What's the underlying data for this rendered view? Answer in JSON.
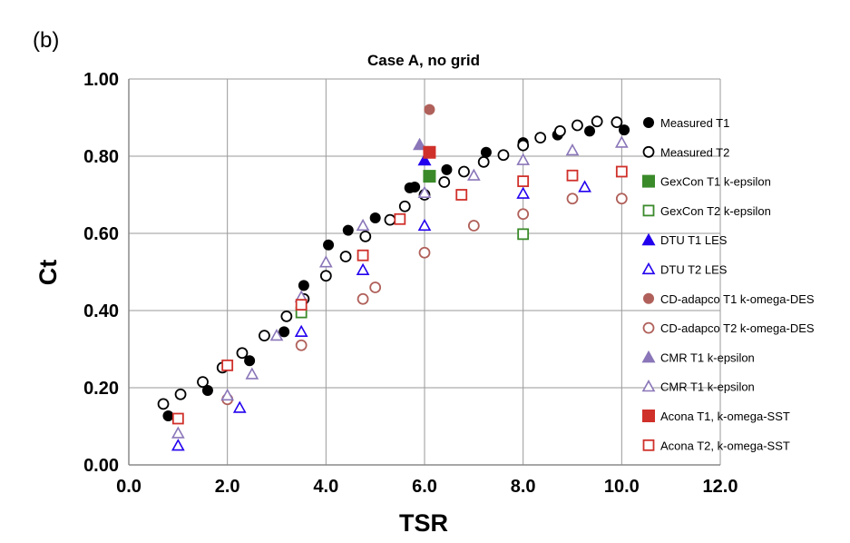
{
  "panel_label": "(b)",
  "chart_data": {
    "type": "scatter",
    "title": "Case A, no grid",
    "xlabel": "TSR",
    "ylabel": "Ct",
    "xlim": [
      0.0,
      12.0
    ],
    "ylim": [
      0.0,
      1.0
    ],
    "xticks": [
      "0.0",
      "2.0",
      "4.0",
      "6.0",
      "8.0",
      "10.0",
      "12.0"
    ],
    "yticks": [
      "0.00",
      "0.20",
      "0.40",
      "0.60",
      "0.80",
      "1.00"
    ],
    "grid": true,
    "legend_position": "right",
    "series": [
      {
        "name": "Measured T1",
        "marker": "circle",
        "filled": true,
        "color": "#000000",
        "points": [
          [
            0.8,
            0.127
          ],
          [
            1.6,
            0.193
          ],
          [
            2.45,
            0.27
          ],
          [
            3.15,
            0.345
          ],
          [
            3.55,
            0.465
          ],
          [
            4.05,
            0.57
          ],
          [
            4.45,
            0.608
          ],
          [
            5.0,
            0.64
          ],
          [
            5.7,
            0.718
          ],
          [
            5.8,
            0.72
          ],
          [
            6.45,
            0.765
          ],
          [
            7.25,
            0.81
          ],
          [
            8.0,
            0.835
          ],
          [
            8.7,
            0.855
          ],
          [
            9.35,
            0.865
          ],
          [
            10.05,
            0.868
          ]
        ]
      },
      {
        "name": "Measured T2",
        "marker": "circle",
        "filled": false,
        "color": "#000000",
        "points": [
          [
            0.7,
            0.158
          ],
          [
            1.05,
            0.183
          ],
          [
            1.5,
            0.215
          ],
          [
            1.9,
            0.252
          ],
          [
            2.3,
            0.29
          ],
          [
            2.75,
            0.335
          ],
          [
            3.2,
            0.385
          ],
          [
            3.55,
            0.43
          ],
          [
            4.0,
            0.49
          ],
          [
            4.4,
            0.54
          ],
          [
            4.8,
            0.592
          ],
          [
            5.3,
            0.635
          ],
          [
            5.6,
            0.67
          ],
          [
            6.0,
            0.7
          ],
          [
            6.4,
            0.733
          ],
          [
            6.8,
            0.76
          ],
          [
            7.2,
            0.785
          ],
          [
            7.6,
            0.803
          ],
          [
            8.0,
            0.828
          ],
          [
            8.35,
            0.848
          ],
          [
            8.75,
            0.865
          ],
          [
            9.1,
            0.88
          ],
          [
            9.5,
            0.89
          ],
          [
            9.9,
            0.888
          ]
        ]
      },
      {
        "name": "GexCon T1 k-epsilon",
        "marker": "square",
        "filled": true,
        "color": "#3a8a2a",
        "points": [
          [
            6.1,
            0.748
          ]
        ]
      },
      {
        "name": "GexCon T2 k-epsilon",
        "marker": "square",
        "filled": false,
        "color": "#3a8a2a",
        "points": [
          [
            3.5,
            0.395
          ],
          [
            8.0,
            0.598
          ]
        ]
      },
      {
        "name": "DTU T1 LES",
        "marker": "triangle",
        "filled": true,
        "color": "#2200ee",
        "points": [
          [
            6.0,
            0.79
          ]
        ]
      },
      {
        "name": "DTU T2 LES",
        "marker": "triangle",
        "filled": false,
        "color": "#2200ee",
        "points": [
          [
            1.0,
            0.05
          ],
          [
            2.25,
            0.148
          ],
          [
            3.5,
            0.345
          ],
          [
            4.75,
            0.505
          ],
          [
            6.0,
            0.62
          ],
          [
            8.0,
            0.703
          ],
          [
            9.25,
            0.72
          ]
        ]
      },
      {
        "name": "CD-adapco T1 k-omega-DES",
        "marker": "circle",
        "filled": true,
        "color": "#b0605a",
        "points": [
          [
            6.1,
            0.921
          ]
        ]
      },
      {
        "name": "CD-adapco T2 k-omega-DES",
        "marker": "circle",
        "filled": false,
        "color": "#b0605a",
        "points": [
          [
            2.0,
            0.17
          ],
          [
            3.5,
            0.31
          ],
          [
            4.75,
            0.43
          ],
          [
            5.0,
            0.46
          ],
          [
            6.0,
            0.55
          ],
          [
            7.0,
            0.62
          ],
          [
            8.0,
            0.65
          ],
          [
            9.0,
            0.69
          ],
          [
            10.0,
            0.69
          ]
        ]
      },
      {
        "name": "CMR T1 k-epsilon",
        "marker": "triangle",
        "filled": true,
        "color": "#8a76b8",
        "points": [
          [
            5.9,
            0.83
          ]
        ]
      },
      {
        "name": "CMR T1 k-epsilon",
        "marker": "triangle",
        "filled": false,
        "color": "#8a76b8",
        "points": [
          [
            1.0,
            0.082
          ],
          [
            2.0,
            0.18
          ],
          [
            2.5,
            0.235
          ],
          [
            3.0,
            0.335
          ],
          [
            3.5,
            0.435
          ],
          [
            4.0,
            0.525
          ],
          [
            4.75,
            0.62
          ],
          [
            6.0,
            0.705
          ],
          [
            7.0,
            0.75
          ],
          [
            8.0,
            0.79
          ],
          [
            9.0,
            0.815
          ],
          [
            10.0,
            0.835
          ]
        ]
      },
      {
        "name": "Acona T1,  k-omega-SST",
        "marker": "square",
        "filled": true,
        "color": "#d0302a",
        "points": [
          [
            6.1,
            0.81
          ]
        ]
      },
      {
        "name": "Acona T2,  k-omega-SST",
        "marker": "square",
        "filled": false,
        "color": "#d0302a",
        "points": [
          [
            1.0,
            0.12
          ],
          [
            2.0,
            0.258
          ],
          [
            3.5,
            0.415
          ],
          [
            4.75,
            0.543
          ],
          [
            5.5,
            0.637
          ],
          [
            6.75,
            0.7
          ],
          [
            8.0,
            0.735
          ],
          [
            9.0,
            0.75
          ],
          [
            10.0,
            0.76
          ]
        ]
      }
    ]
  }
}
